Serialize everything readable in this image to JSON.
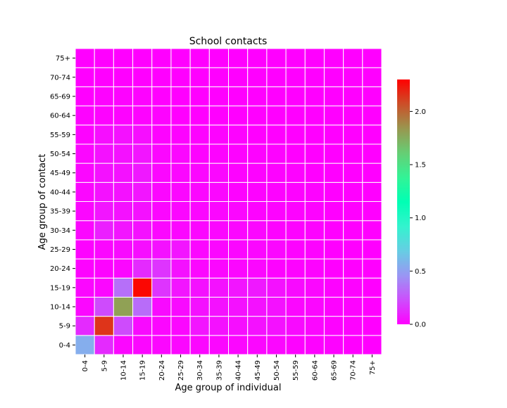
{
  "chart_data": {
    "type": "heatmap",
    "title": "School contacts",
    "xlabel": "Age group of individual",
    "ylabel": "Age group of contact",
    "x_categories": [
      "0-4",
      "5-9",
      "10-14",
      "15-19",
      "20-24",
      "25-29",
      "30-34",
      "35-39",
      "40-44",
      "45-49",
      "50-54",
      "55-59",
      "60-64",
      "65-69",
      "70-74",
      "75+"
    ],
    "y_categories": [
      "0-4",
      "5-9",
      "10-14",
      "15-19",
      "20-24",
      "25-29",
      "30-34",
      "35-39",
      "40-44",
      "45-49",
      "50-54",
      "55-59",
      "60-64",
      "65-69",
      "70-74",
      "75+"
    ],
    "values": [
      [
        0.55,
        0.12,
        0.02,
        0.02,
        0.02,
        0.02,
        0.02,
        0.02,
        0.02,
        0.02,
        0.02,
        0.01,
        0.01,
        0.01,
        0.0,
        0.0
      ],
      [
        0.12,
        2.15,
        0.22,
        0.03,
        0.02,
        0.02,
        0.06,
        0.05,
        0.04,
        0.05,
        0.05,
        0.03,
        0.02,
        0.01,
        0.01,
        0.0
      ],
      [
        0.02,
        0.22,
        1.8,
        0.32,
        0.03,
        0.03,
        0.05,
        0.05,
        0.05,
        0.05,
        0.05,
        0.02,
        0.02,
        0.01,
        0.01,
        0.0
      ],
      [
        0.02,
        0.02,
        0.33,
        2.28,
        0.15,
        0.06,
        0.05,
        0.05,
        0.06,
        0.07,
        0.05,
        0.03,
        0.02,
        0.01,
        0.01,
        0.0
      ],
      [
        0.01,
        0.01,
        0.02,
        0.12,
        0.15,
        0.05,
        0.02,
        0.02,
        0.02,
        0.02,
        0.01,
        0.01,
        0.01,
        0.0,
        0.0,
        0.0
      ],
      [
        0.01,
        0.02,
        0.03,
        0.04,
        0.05,
        0.06,
        0.02,
        0.02,
        0.02,
        0.02,
        0.02,
        0.01,
        0.01,
        0.0,
        0.0,
        0.0
      ],
      [
        0.02,
        0.09,
        0.06,
        0.05,
        0.02,
        0.02,
        0.02,
        0.02,
        0.02,
        0.02,
        0.01,
        0.01,
        0.01,
        0.0,
        0.0,
        0.0
      ],
      [
        0.02,
        0.06,
        0.05,
        0.05,
        0.02,
        0.02,
        0.02,
        0.02,
        0.02,
        0.01,
        0.01,
        0.01,
        0.01,
        0.0,
        0.0,
        0.0
      ],
      [
        0.02,
        0.05,
        0.05,
        0.06,
        0.02,
        0.02,
        0.02,
        0.02,
        0.01,
        0.01,
        0.01,
        0.01,
        0.01,
        0.0,
        0.0,
        0.0
      ],
      [
        0.02,
        0.05,
        0.05,
        0.07,
        0.02,
        0.02,
        0.02,
        0.02,
        0.01,
        0.01,
        0.01,
        0.01,
        0.0,
        0.0,
        0.0,
        0.0
      ],
      [
        0.02,
        0.05,
        0.05,
        0.06,
        0.02,
        0.02,
        0.01,
        0.01,
        0.01,
        0.01,
        0.01,
        0.0,
        0.0,
        0.0,
        0.0,
        0.0
      ],
      [
        0.01,
        0.04,
        0.05,
        0.04,
        0.01,
        0.01,
        0.01,
        0.01,
        0.01,
        0.0,
        0.0,
        0.0,
        0.0,
        0.0,
        0.0,
        0.0
      ],
      [
        0.01,
        0.01,
        0.01,
        0.01,
        0.01,
        0.0,
        0.0,
        0.0,
        0.0,
        0.0,
        0.0,
        0.0,
        0.0,
        0.0,
        0.0,
        0.0
      ],
      [
        0.0,
        0.01,
        0.01,
        0.01,
        0.0,
        0.0,
        0.0,
        0.0,
        0.0,
        0.0,
        0.0,
        0.0,
        0.0,
        0.0,
        0.0,
        0.0
      ],
      [
        0.0,
        0.0,
        0.0,
        0.0,
        0.0,
        0.0,
        0.0,
        0.0,
        0.0,
        0.0,
        0.0,
        0.0,
        0.0,
        0.0,
        0.0,
        0.0
      ],
      [
        0.0,
        0.0,
        0.0,
        0.0,
        0.0,
        0.0,
        0.0,
        0.0,
        0.0,
        0.0,
        0.0,
        0.0,
        0.0,
        0.0,
        0.0,
        0.0
      ]
    ],
    "colorbar": {
      "colormap": "rainbow",
      "range": [
        0,
        2.3
      ],
      "ticks": [
        "0.0",
        "0.5",
        "1.0",
        "1.5",
        "2.0"
      ]
    },
    "cell_border_color": "#ffffff",
    "grid": false
  }
}
